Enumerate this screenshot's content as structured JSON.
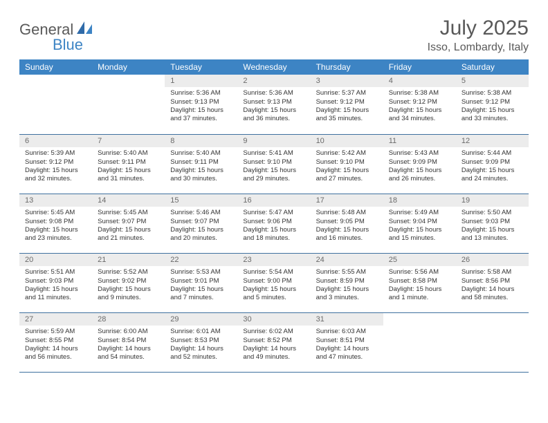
{
  "logo": {
    "general": "General",
    "blue": "Blue"
  },
  "title": "July 2025",
  "location": "Isso, Lombardy, Italy",
  "colors": {
    "header_bg": "#3d84c4",
    "header_text": "#ffffff",
    "rule": "#3d6f9e",
    "daynum_bg": "#ececec",
    "daynum_text": "#6a6a6a",
    "body_text": "#333333",
    "logo_gray": "#595959",
    "logo_blue": "#3d84c4"
  },
  "weekdays": [
    "Sunday",
    "Monday",
    "Tuesday",
    "Wednesday",
    "Thursday",
    "Friday",
    "Saturday"
  ],
  "leading_blanks": 2,
  "trailing_blanks": 2,
  "days": [
    {
      "n": "1",
      "sunrise": "5:36 AM",
      "sunset": "9:13 PM",
      "daylight": "15 hours and 37 minutes."
    },
    {
      "n": "2",
      "sunrise": "5:36 AM",
      "sunset": "9:13 PM",
      "daylight": "15 hours and 36 minutes."
    },
    {
      "n": "3",
      "sunrise": "5:37 AM",
      "sunset": "9:12 PM",
      "daylight": "15 hours and 35 minutes."
    },
    {
      "n": "4",
      "sunrise": "5:38 AM",
      "sunset": "9:12 PM",
      "daylight": "15 hours and 34 minutes."
    },
    {
      "n": "5",
      "sunrise": "5:38 AM",
      "sunset": "9:12 PM",
      "daylight": "15 hours and 33 minutes."
    },
    {
      "n": "6",
      "sunrise": "5:39 AM",
      "sunset": "9:12 PM",
      "daylight": "15 hours and 32 minutes."
    },
    {
      "n": "7",
      "sunrise": "5:40 AM",
      "sunset": "9:11 PM",
      "daylight": "15 hours and 31 minutes."
    },
    {
      "n": "8",
      "sunrise": "5:40 AM",
      "sunset": "9:11 PM",
      "daylight": "15 hours and 30 minutes."
    },
    {
      "n": "9",
      "sunrise": "5:41 AM",
      "sunset": "9:10 PM",
      "daylight": "15 hours and 29 minutes."
    },
    {
      "n": "10",
      "sunrise": "5:42 AM",
      "sunset": "9:10 PM",
      "daylight": "15 hours and 27 minutes."
    },
    {
      "n": "11",
      "sunrise": "5:43 AM",
      "sunset": "9:09 PM",
      "daylight": "15 hours and 26 minutes."
    },
    {
      "n": "12",
      "sunrise": "5:44 AM",
      "sunset": "9:09 PM",
      "daylight": "15 hours and 24 minutes."
    },
    {
      "n": "13",
      "sunrise": "5:45 AM",
      "sunset": "9:08 PM",
      "daylight": "15 hours and 23 minutes."
    },
    {
      "n": "14",
      "sunrise": "5:45 AM",
      "sunset": "9:07 PM",
      "daylight": "15 hours and 21 minutes."
    },
    {
      "n": "15",
      "sunrise": "5:46 AM",
      "sunset": "9:07 PM",
      "daylight": "15 hours and 20 minutes."
    },
    {
      "n": "16",
      "sunrise": "5:47 AM",
      "sunset": "9:06 PM",
      "daylight": "15 hours and 18 minutes."
    },
    {
      "n": "17",
      "sunrise": "5:48 AM",
      "sunset": "9:05 PM",
      "daylight": "15 hours and 16 minutes."
    },
    {
      "n": "18",
      "sunrise": "5:49 AM",
      "sunset": "9:04 PM",
      "daylight": "15 hours and 15 minutes."
    },
    {
      "n": "19",
      "sunrise": "5:50 AM",
      "sunset": "9:03 PM",
      "daylight": "15 hours and 13 minutes."
    },
    {
      "n": "20",
      "sunrise": "5:51 AM",
      "sunset": "9:03 PM",
      "daylight": "15 hours and 11 minutes."
    },
    {
      "n": "21",
      "sunrise": "5:52 AM",
      "sunset": "9:02 PM",
      "daylight": "15 hours and 9 minutes."
    },
    {
      "n": "22",
      "sunrise": "5:53 AM",
      "sunset": "9:01 PM",
      "daylight": "15 hours and 7 minutes."
    },
    {
      "n": "23",
      "sunrise": "5:54 AM",
      "sunset": "9:00 PM",
      "daylight": "15 hours and 5 minutes."
    },
    {
      "n": "24",
      "sunrise": "5:55 AM",
      "sunset": "8:59 PM",
      "daylight": "15 hours and 3 minutes."
    },
    {
      "n": "25",
      "sunrise": "5:56 AM",
      "sunset": "8:58 PM",
      "daylight": "15 hours and 1 minute."
    },
    {
      "n": "26",
      "sunrise": "5:58 AM",
      "sunset": "8:56 PM",
      "daylight": "14 hours and 58 minutes."
    },
    {
      "n": "27",
      "sunrise": "5:59 AM",
      "sunset": "8:55 PM",
      "daylight": "14 hours and 56 minutes."
    },
    {
      "n": "28",
      "sunrise": "6:00 AM",
      "sunset": "8:54 PM",
      "daylight": "14 hours and 54 minutes."
    },
    {
      "n": "29",
      "sunrise": "6:01 AM",
      "sunset": "8:53 PM",
      "daylight": "14 hours and 52 minutes."
    },
    {
      "n": "30",
      "sunrise": "6:02 AM",
      "sunset": "8:52 PM",
      "daylight": "14 hours and 49 minutes."
    },
    {
      "n": "31",
      "sunrise": "6:03 AM",
      "sunset": "8:51 PM",
      "daylight": "14 hours and 47 minutes."
    }
  ],
  "labels": {
    "sunrise": "Sunrise:",
    "sunset": "Sunset:",
    "daylight": "Daylight:"
  }
}
